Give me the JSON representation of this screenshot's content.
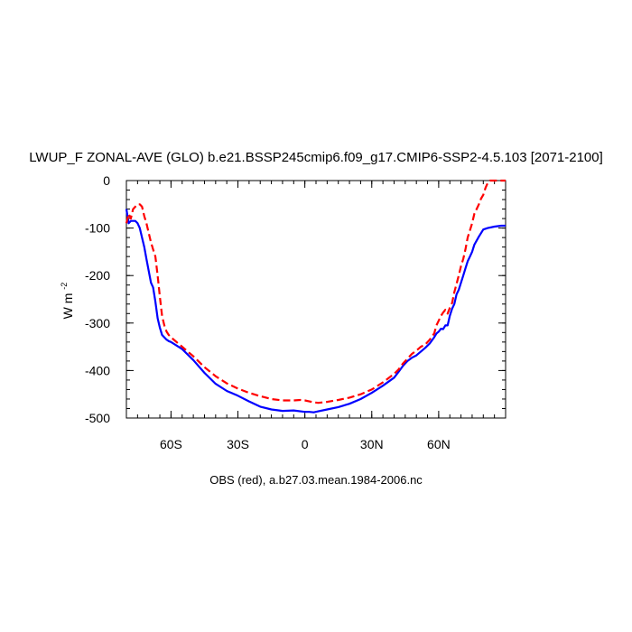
{
  "chart_data": {
    "type": "line",
    "title": "LWUP_F ZONAL-AVE (GLO) b.e21.BSSP245cmip6.f09_g17.CMIP6-SSP2-4.5.103 [2071-2100]",
    "caption": "OBS (red), a.b27.03.mean.1984-2006.nc",
    "ylabel": "W m",
    "ylabel_superscript": "-2",
    "xlim": [
      -80,
      90
    ],
    "ylim": [
      -500,
      0
    ],
    "x_ticks": [
      {
        "value": -60,
        "label": "60S"
      },
      {
        "value": -30,
        "label": "30S"
      },
      {
        "value": 0,
        "label": "0"
      },
      {
        "value": 30,
        "label": "30N"
      },
      {
        "value": 60,
        "label": "60N"
      }
    ],
    "y_ticks": [
      {
        "value": 0,
        "label": "0"
      },
      {
        "value": -100,
        "label": "-100"
      },
      {
        "value": -200,
        "label": "-200"
      },
      {
        "value": -300,
        "label": "-300"
      },
      {
        "value": -400,
        "label": "-400"
      },
      {
        "value": -500,
        "label": "-500"
      }
    ],
    "series": [
      {
        "color": "#0000ff",
        "style": "solid",
        "x": [
          -80,
          -79,
          -78,
          -76,
          -75,
          -74,
          -73,
          -72,
          -71,
          -70,
          -69,
          -68,
          -67,
          -66,
          -65,
          -64,
          -63,
          -62,
          -61,
          -60,
          -55,
          -50,
          -45,
          -40,
          -35,
          -30,
          -25,
          -20,
          -15,
          -10,
          -5,
          0,
          2,
          4,
          6,
          10,
          15,
          20,
          25,
          30,
          35,
          40,
          42,
          44,
          46,
          48,
          50,
          52,
          54,
          56,
          58,
          59,
          60,
          61,
          62,
          63,
          64,
          65,
          66,
          67,
          68,
          69,
          70,
          71,
          72,
          73,
          74,
          75,
          76,
          78,
          80,
          82,
          85,
          88,
          90
        ],
        "y": [
          -60,
          -90,
          -85,
          -85,
          -90,
          -100,
          -120,
          -140,
          -165,
          -190,
          -215,
          -225,
          -255,
          -290,
          -310,
          -325,
          -330,
          -335,
          -338,
          -340,
          -355,
          -378,
          -405,
          -428,
          -443,
          -453,
          -465,
          -476,
          -482,
          -485,
          -484,
          -487,
          -487,
          -488,
          -486,
          -482,
          -477,
          -470,
          -460,
          -447,
          -432,
          -415,
          -403,
          -390,
          -380,
          -373,
          -368,
          -360,
          -352,
          -343,
          -330,
          -322,
          -318,
          -312,
          -313,
          -305,
          -305,
          -285,
          -270,
          -260,
          -240,
          -230,
          -215,
          -200,
          -185,
          -170,
          -160,
          -150,
          -135,
          -118,
          -103,
          -100,
          -97,
          -95,
          -95
        ]
      },
      {
        "color": "#ff0000",
        "style": "dashed",
        "x": [
          -80,
          -79,
          -78,
          -77,
          -76,
          -75,
          -74,
          -73,
          -72,
          -71,
          -70,
          -69,
          -68,
          -67,
          -66,
          -65,
          -64,
          -63,
          -62,
          -61,
          -60,
          -55,
          -50,
          -45,
          -40,
          -35,
          -30,
          -25,
          -20,
          -15,
          -10,
          -5,
          -2,
          0,
          2,
          4,
          6,
          10,
          15,
          20,
          25,
          30,
          35,
          40,
          42,
          44,
          46,
          48,
          50,
          52,
          54,
          56,
          58,
          59,
          60,
          61,
          62,
          63,
          64,
          65,
          66,
          67,
          68,
          69,
          70,
          71,
          72,
          73,
          74,
          75,
          76,
          77,
          78,
          79,
          80,
          81,
          82,
          83,
          85,
          88,
          90
        ],
        "y": [
          -90,
          -70,
          -80,
          -60,
          -55,
          -50,
          -50,
          -55,
          -75,
          -90,
          -110,
          -130,
          -145,
          -160,
          -200,
          -245,
          -285,
          -305,
          -318,
          -325,
          -330,
          -350,
          -370,
          -393,
          -412,
          -427,
          -438,
          -447,
          -454,
          -460,
          -463,
          -463,
          -462,
          -463,
          -465,
          -467,
          -468,
          -466,
          -462,
          -457,
          -450,
          -440,
          -425,
          -407,
          -398,
          -385,
          -375,
          -365,
          -358,
          -350,
          -345,
          -335,
          -322,
          -305,
          -295,
          -285,
          -278,
          -272,
          -280,
          -268,
          -258,
          -235,
          -218,
          -200,
          -180,
          -165,
          -145,
          -120,
          -105,
          -90,
          -70,
          -60,
          -50,
          -38,
          -30,
          -15,
          -5,
          0,
          0,
          0,
          0
        ]
      }
    ]
  }
}
